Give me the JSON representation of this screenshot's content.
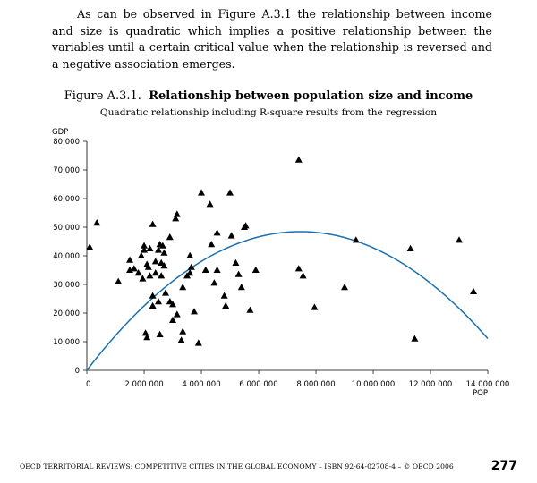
{
  "body_text": "As can be observed in Figure A.3.1 the relationship between income and size is quadratic which implies a positive relationship between the variables until a certain critical value when the relationship is reversed and a negative association emerges.",
  "figure": {
    "number": "Figure A.3.1.",
    "title": "Relationship between population size and income",
    "subtitle": "Quadratic relationship including R-square results from the regression"
  },
  "chart_data": {
    "type": "scatter",
    "ylabel": "GDP",
    "xlabel": "POP",
    "xlim": [
      0,
      14000000
    ],
    "ylim": [
      0,
      80000
    ],
    "x_ticks": [
      0,
      2000000,
      4000000,
      6000000,
      8000000,
      10000000,
      12000000,
      14000000
    ],
    "x_tick_labels": [
      "0",
      "2 000 000",
      "4 000 000",
      "6 000 000",
      "8 000 000",
      "10 000 000",
      "12 000 000",
      "14 000 000"
    ],
    "y_ticks": [
      0,
      10000,
      20000,
      30000,
      40000,
      50000,
      60000,
      70000,
      80000
    ],
    "y_tick_labels": [
      "0",
      "10 000",
      "20 000",
      "30 000",
      "40 000",
      "50 000",
      "60 000",
      "70 000",
      "80 000"
    ],
    "grid": false,
    "marker": "triangle",
    "marker_color": "#000000",
    "fit_color": "#1a6faf",
    "points": [
      [
        100000,
        43000
      ],
      [
        350000,
        51500
      ],
      [
        1100000,
        31000
      ],
      [
        1500000,
        35000
      ],
      [
        1500000,
        38500
      ],
      [
        1650000,
        35500
      ],
      [
        1800000,
        34000
      ],
      [
        1900000,
        40000
      ],
      [
        1950000,
        32000
      ],
      [
        2000000,
        42000
      ],
      [
        2000000,
        43500
      ],
      [
        2050000,
        13000
      ],
      [
        2100000,
        11500
      ],
      [
        2100000,
        37000
      ],
      [
        2150000,
        36000
      ],
      [
        2200000,
        33000
      ],
      [
        2200000,
        42500
      ],
      [
        2300000,
        26000
      ],
      [
        2300000,
        22500
      ],
      [
        2300000,
        51000
      ],
      [
        2400000,
        38000
      ],
      [
        2400000,
        34000
      ],
      [
        2500000,
        42000
      ],
      [
        2500000,
        24000
      ],
      [
        2550000,
        12500
      ],
      [
        2550000,
        44000
      ],
      [
        2600000,
        33000
      ],
      [
        2600000,
        37500
      ],
      [
        2650000,
        43500
      ],
      [
        2700000,
        36500
      ],
      [
        2700000,
        41000
      ],
      [
        2750000,
        27000
      ],
      [
        2900000,
        46500
      ],
      [
        2900000,
        24000
      ],
      [
        3000000,
        23000
      ],
      [
        3000000,
        17500
      ],
      [
        3100000,
        53000
      ],
      [
        3150000,
        54500
      ],
      [
        3150000,
        19500
      ],
      [
        3300000,
        10500
      ],
      [
        3350000,
        29000
      ],
      [
        3350000,
        13500
      ],
      [
        3500000,
        33000
      ],
      [
        3600000,
        34000
      ],
      [
        3600000,
        40000
      ],
      [
        3650000,
        36000
      ],
      [
        3750000,
        20500
      ],
      [
        3900000,
        9500
      ],
      [
        4000000,
        62000
      ],
      [
        4150000,
        35000
      ],
      [
        4300000,
        58000
      ],
      [
        4350000,
        44000
      ],
      [
        4450000,
        30500
      ],
      [
        4550000,
        48000
      ],
      [
        4550000,
        35000
      ],
      [
        4800000,
        26000
      ],
      [
        4850000,
        22500
      ],
      [
        5000000,
        62000
      ],
      [
        5050000,
        47000
      ],
      [
        5200000,
        37500
      ],
      [
        5300000,
        33500
      ],
      [
        5400000,
        29000
      ],
      [
        5500000,
        50000
      ],
      [
        5550000,
        50500
      ],
      [
        5700000,
        21000
      ],
      [
        5900000,
        35000
      ],
      [
        7400000,
        73500
      ],
      [
        7400000,
        35500
      ],
      [
        7550000,
        33000
      ],
      [
        7950000,
        22000
      ],
      [
        9000000,
        29000
      ],
      [
        9400000,
        45500
      ],
      [
        11300000,
        42500
      ],
      [
        11450000,
        11000
      ],
      [
        13000000,
        45500
      ],
      [
        13500000,
        27500
      ]
    ],
    "fit": {
      "type": "quadratic",
      "a": -8.72e-10,
      "b": 0.013,
      "c": 0
    }
  },
  "footer": {
    "text": "OECD TERRITORIAL REVIEWS: COMPETITIVE CITIES IN THE GLOBAL ECONOMY – ISBN 92-64-02708-4 – © OECD 2006",
    "page": "277"
  }
}
